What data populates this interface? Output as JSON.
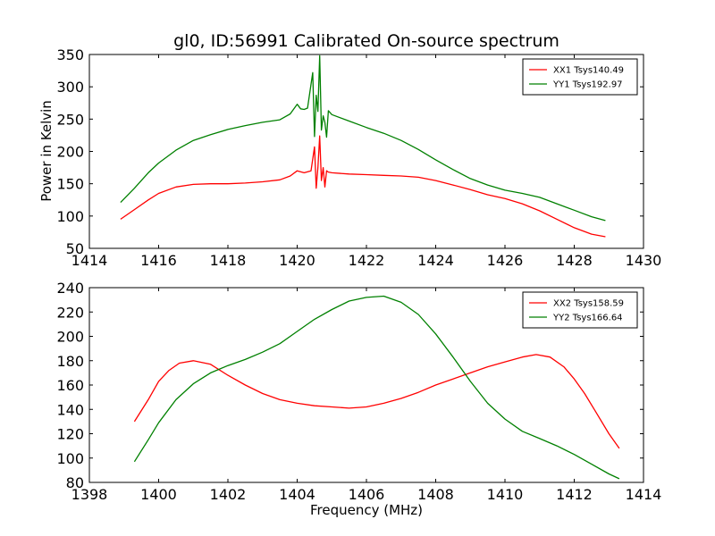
{
  "figure": {
    "title": "gl0, ID:56991 Calibrated On-source spectrum",
    "ylabel": "Power in Kelvin",
    "xlabel": "Frequency (MHz)"
  },
  "chart_data": [
    {
      "type": "line",
      "title": "gl0, ID:56991 Calibrated On-source spectrum",
      "xlabel": "",
      "ylabel": "Power in Kelvin",
      "xlim": [
        1414,
        1430
      ],
      "ylim": [
        50,
        350
      ],
      "xticks": [
        1414,
        1416,
        1418,
        1420,
        1422,
        1424,
        1426,
        1428,
        1430
      ],
      "yticks": [
        50,
        100,
        150,
        200,
        250,
        300,
        350
      ],
      "legend_position": "top-right",
      "grid": false,
      "series": [
        {
          "name": "XX1 Tsys140.49",
          "color": "#ff0000",
          "x": [
            1414.9,
            1415.3,
            1415.7,
            1416.0,
            1416.5,
            1417.0,
            1417.5,
            1418.0,
            1418.5,
            1419.0,
            1419.5,
            1419.8,
            1420.0,
            1420.2,
            1420.4,
            1420.5,
            1420.55,
            1420.6,
            1420.65,
            1420.7,
            1420.75,
            1420.8,
            1420.85,
            1420.9,
            1421.0,
            1421.5,
            1422.0,
            1422.5,
            1423.0,
            1423.5,
            1424.0,
            1424.5,
            1425.0,
            1425.5,
            1426.0,
            1426.5,
            1427.0,
            1427.5,
            1428.0,
            1428.5,
            1428.9
          ],
          "y": [
            95,
            110,
            125,
            135,
            145,
            149,
            150,
            150,
            151,
            153,
            156,
            162,
            170,
            167,
            170,
            207,
            143,
            175,
            224,
            155,
            175,
            145,
            170,
            168,
            167,
            165,
            164,
            163,
            162,
            160,
            155,
            148,
            141,
            133,
            127,
            119,
            108,
            95,
            82,
            72,
            68
          ]
        },
        {
          "name": "YY1 Tsys192.97",
          "color": "#008000",
          "x": [
            1414.9,
            1415.3,
            1415.7,
            1416.0,
            1416.5,
            1417.0,
            1417.5,
            1418.0,
            1418.5,
            1419.0,
            1419.5,
            1419.8,
            1420.0,
            1420.1,
            1420.2,
            1420.3,
            1420.45,
            1420.5,
            1420.55,
            1420.6,
            1420.65,
            1420.7,
            1420.75,
            1420.8,
            1420.85,
            1420.9,
            1421.0,
            1421.5,
            1422.0,
            1422.5,
            1423.0,
            1423.5,
            1424.0,
            1424.5,
            1425.0,
            1425.5,
            1426.0,
            1426.5,
            1427.0,
            1427.5,
            1428.0,
            1428.5,
            1428.9
          ],
          "y": [
            121,
            143,
            167,
            182,
            202,
            217,
            226,
            234,
            240,
            245,
            249,
            258,
            273,
            266,
            265,
            267,
            322,
            223,
            287,
            262,
            348,
            233,
            255,
            245,
            222,
            263,
            257,
            247,
            237,
            228,
            217,
            203,
            187,
            172,
            158,
            148,
            140,
            135,
            129,
            119,
            109,
            99,
            93
          ]
        }
      ]
    },
    {
      "type": "line",
      "title": "",
      "xlabel": "Frequency (MHz)",
      "ylabel": "",
      "xlim": [
        1398,
        1414
      ],
      "ylim": [
        80,
        240
      ],
      "xticks": [
        1398,
        1400,
        1402,
        1404,
        1406,
        1408,
        1410,
        1412,
        1414
      ],
      "yticks": [
        80,
        100,
        120,
        140,
        160,
        180,
        200,
        220,
        240
      ],
      "legend_position": "top-right",
      "grid": false,
      "series": [
        {
          "name": "XX2 Tsys158.59",
          "color": "#ff0000",
          "x": [
            1399.3,
            1399.7,
            1400.0,
            1400.3,
            1400.6,
            1401.0,
            1401.5,
            1402.0,
            1402.5,
            1403.0,
            1403.5,
            1404.0,
            1404.5,
            1405.0,
            1405.5,
            1406.0,
            1406.5,
            1407.0,
            1407.5,
            1408.0,
            1408.5,
            1409.0,
            1409.5,
            1410.0,
            1410.5,
            1410.9,
            1411.3,
            1411.7,
            1412.0,
            1412.3,
            1412.6,
            1413.0,
            1413.3
          ],
          "y": [
            130,
            148,
            163,
            172,
            178,
            180,
            177,
            168,
            160,
            153,
            148,
            145,
            143,
            142,
            141,
            142,
            145,
            149,
            154,
            160,
            165,
            170,
            175,
            179,
            183,
            185,
            183,
            175,
            165,
            153,
            139,
            120,
            108
          ]
        },
        {
          "name": "YY2 Tsys166.64",
          "color": "#008000",
          "x": [
            1399.3,
            1399.7,
            1400.0,
            1400.5,
            1401.0,
            1401.5,
            1402.0,
            1402.5,
            1403.0,
            1403.5,
            1404.0,
            1404.5,
            1405.0,
            1405.5,
            1406.0,
            1406.5,
            1407.0,
            1407.5,
            1408.0,
            1408.5,
            1409.0,
            1409.5,
            1410.0,
            1410.5,
            1411.0,
            1411.5,
            1412.0,
            1412.5,
            1413.0,
            1413.3
          ],
          "y": [
            97,
            115,
            129,
            148,
            161,
            170,
            176,
            181,
            187,
            194,
            204,
            214,
            222,
            229,
            232,
            233,
            228,
            218,
            202,
            183,
            163,
            145,
            132,
            122,
            116,
            110,
            103,
            95,
            87,
            83
          ]
        }
      ]
    }
  ]
}
